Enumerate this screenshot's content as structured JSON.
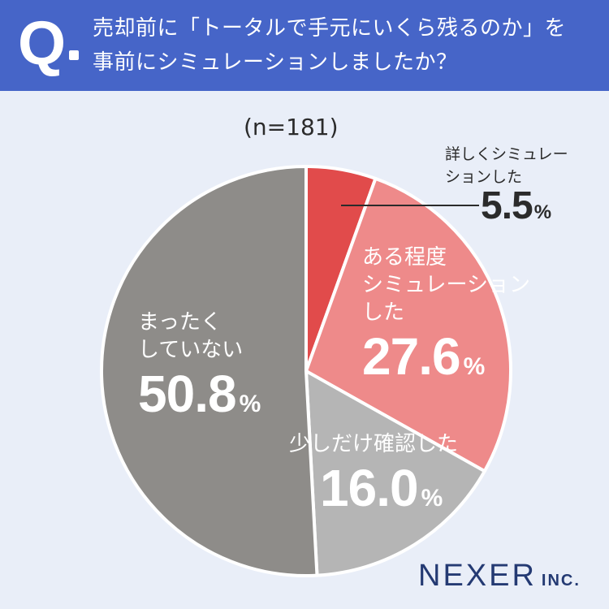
{
  "header": {
    "q_mark": "Q",
    "question_line1": "売却前に「トータルで手元にいくら残るのか」を",
    "question_line2": "事前にシミュレーションしましたか？"
  },
  "chart_data": {
    "type": "pie",
    "subtitle": "(n=181)",
    "start_angle_deg": 0,
    "direction": "clockwise",
    "slices": [
      {
        "label_line1": "詳しくシミュレー",
        "label_line2": "ションした",
        "label_line3": "",
        "value": 5.5,
        "value_text": "5.5",
        "color": "#e14b4b"
      },
      {
        "label_line1": "ある程度",
        "label_line2": "シミュレーション",
        "label_line3": "した",
        "value": 27.6,
        "value_text": "27.6",
        "color": "#ee8a8a"
      },
      {
        "label_line1": "少しだけ確認した",
        "label_line2": "",
        "label_line3": "",
        "value": 16.0,
        "value_text": "16.0",
        "color": "#b5b5b5"
      },
      {
        "label_line1": "まったく",
        "label_line2": "していない",
        "label_line3": "",
        "value": 50.8,
        "value_text": "50.8",
        "color": "#8e8c89"
      }
    ],
    "percent_sign": "%"
  },
  "brand": {
    "name": "NEXER",
    "suffix": "INC."
  }
}
